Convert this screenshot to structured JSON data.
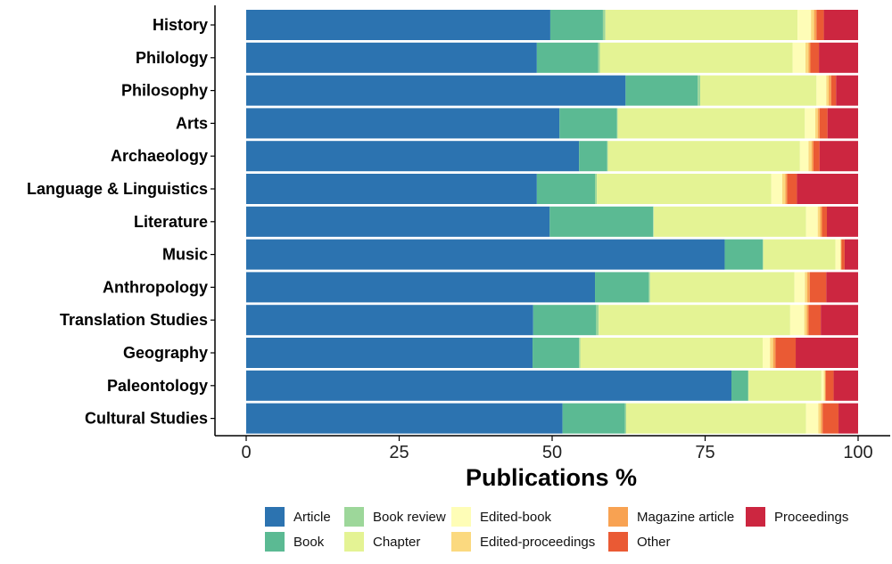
{
  "chart_data": {
    "type": "bar",
    "orientation": "horizontal",
    "stacked": true,
    "xlabel": "Publications %",
    "xlim": [
      0,
      100
    ],
    "xticks": [
      0,
      25,
      50,
      75,
      100
    ],
    "grid": false,
    "legend_position": "bottom",
    "categories": [
      "History",
      "Philology",
      "Philosophy",
      "Arts",
      "Archaeology",
      "Language & Linguistics",
      "Literature",
      "Music",
      "Anthropology",
      "Translation Studies",
      "Geography",
      "Paleontology",
      "Cultural Studies"
    ],
    "series": [
      {
        "name": "Article",
        "color": "#2c73b0",
        "values": [
          49.7,
          47.5,
          62.0,
          51.2,
          54.4,
          47.5,
          49.6,
          78.2,
          57.0,
          46.9,
          46.8,
          79.3,
          51.7
        ]
      },
      {
        "name": "Book",
        "color": "#5bba93",
        "values": [
          8.6,
          10.0,
          11.8,
          9.4,
          4.6,
          9.5,
          16.9,
          6.2,
          8.8,
          10.3,
          7.6,
          2.7,
          10.2
        ]
      },
      {
        "name": "Book review",
        "color": "#9dd79a",
        "values": [
          0.4,
          0.3,
          0.4,
          0.1,
          0.1,
          0.3,
          0.1,
          0.1,
          0.2,
          0.4,
          0.2,
          0.1,
          0.2
        ]
      },
      {
        "name": "Chapter",
        "color": "#e4f394",
        "values": [
          31.4,
          31.5,
          19.0,
          30.6,
          31.4,
          28.5,
          24.9,
          11.8,
          23.6,
          31.3,
          29.8,
          11.9,
          29.4
        ]
      },
      {
        "name": "Edited-book",
        "color": "#fefdb7",
        "values": [
          2.2,
          2.1,
          1.6,
          1.7,
          1.4,
          1.8,
          1.9,
          0.8,
          1.7,
          2.3,
          1.2,
          0.4,
          2.0
        ]
      },
      {
        "name": "Edited-proceedings",
        "color": "#fbd97f",
        "values": [
          0.5,
          0.5,
          0.4,
          0.4,
          0.5,
          0.5,
          0.4,
          0.1,
          0.4,
          0.4,
          0.5,
          0.2,
          0.4
        ]
      },
      {
        "name": "Magazine article",
        "color": "#f8a252",
        "values": [
          0.4,
          0.3,
          0.4,
          0.3,
          0.3,
          0.3,
          0.3,
          0.1,
          0.4,
          0.3,
          0.4,
          0.1,
          0.3
        ]
      },
      {
        "name": "Other",
        "color": "#ea5a34",
        "values": [
          1.2,
          1.4,
          0.8,
          1.3,
          1.0,
          1.6,
          0.8,
          0.5,
          2.7,
          2.0,
          3.3,
          1.3,
          2.6
        ]
      },
      {
        "name": "Proceedings",
        "color": "#cc2640",
        "values": [
          5.6,
          6.4,
          3.6,
          5.0,
          6.3,
          10.0,
          5.1,
          2.2,
          5.2,
          6.1,
          10.2,
          4.0,
          3.2
        ]
      }
    ],
    "legend_order": [
      "Article",
      "Book",
      "Book review",
      "Chapter",
      "Edited-book",
      "Edited-proceedings",
      "Magazine article",
      "Other",
      "Proceedings"
    ]
  }
}
